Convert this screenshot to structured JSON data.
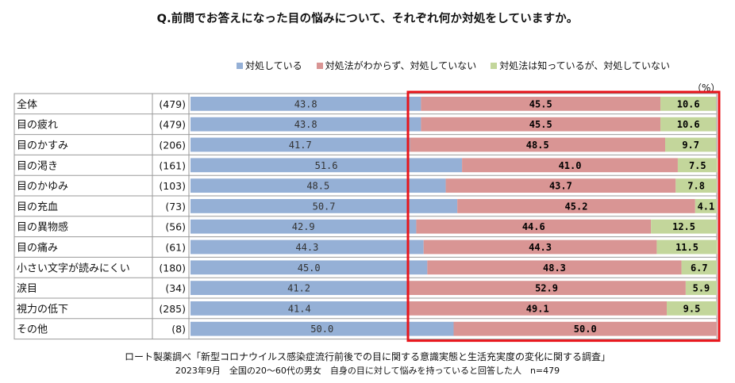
{
  "title": "Q.前問でお答えになった目の悩みについて、それぞれ何か対処をしていますか。",
  "unit": "（%）",
  "legend": [
    {
      "label": "対処している",
      "color": "#95b0d6"
    },
    {
      "label": "対処法がわからず、対処していない",
      "color": "#d99594"
    },
    {
      "label": "対処法は知っているが、対処していない",
      "color": "#c3d69b"
    }
  ],
  "footer": {
    "line1": "ロート製薬調べ「新型コロナウイルス感染症流行前後での目に関する意識実態と生活充実度の変化に関する調査」",
    "line2": "2023年9月　全国の20～60代の男女　自身の目に対して悩みを持っていると回答した人　n=479"
  },
  "chart_data": {
    "type": "bar",
    "stacked": "100%",
    "categories": [
      "全体",
      "目の疲れ",
      "目のかすみ",
      "目の渇き",
      "目のかゆみ",
      "目の充血",
      "目の異物感",
      "目の痛み",
      "小さい文字が読みにくい",
      "涙目",
      "視力の低下",
      "その他"
    ],
    "counts": [
      "(479)",
      "(479)",
      "(206)",
      "(161)",
      "(103)",
      "(73)",
      "(56)",
      "(61)",
      "(180)",
      "(34)",
      "(285)",
      "(8)"
    ],
    "series": [
      {
        "name": "対処している",
        "color": "#95b0d6",
        "values": [
          43.8,
          43.8,
          41.7,
          51.6,
          48.5,
          50.7,
          42.9,
          44.3,
          45.0,
          41.2,
          41.4,
          50.0
        ]
      },
      {
        "name": "対処法がわからず、対処していない",
        "color": "#d99594",
        "values": [
          45.5,
          45.5,
          48.5,
          41.0,
          43.7,
          45.2,
          44.6,
          44.3,
          48.3,
          52.9,
          49.1,
          50.0
        ]
      },
      {
        "name": "対処法は知っているが、対処していない",
        "color": "#c3d69b",
        "values": [
          10.6,
          10.6,
          9.7,
          7.5,
          7.8,
          4.1,
          12.5,
          11.5,
          6.7,
          5.9,
          9.5,
          0
        ]
      }
    ],
    "highlight_color": "#e8141b"
  }
}
